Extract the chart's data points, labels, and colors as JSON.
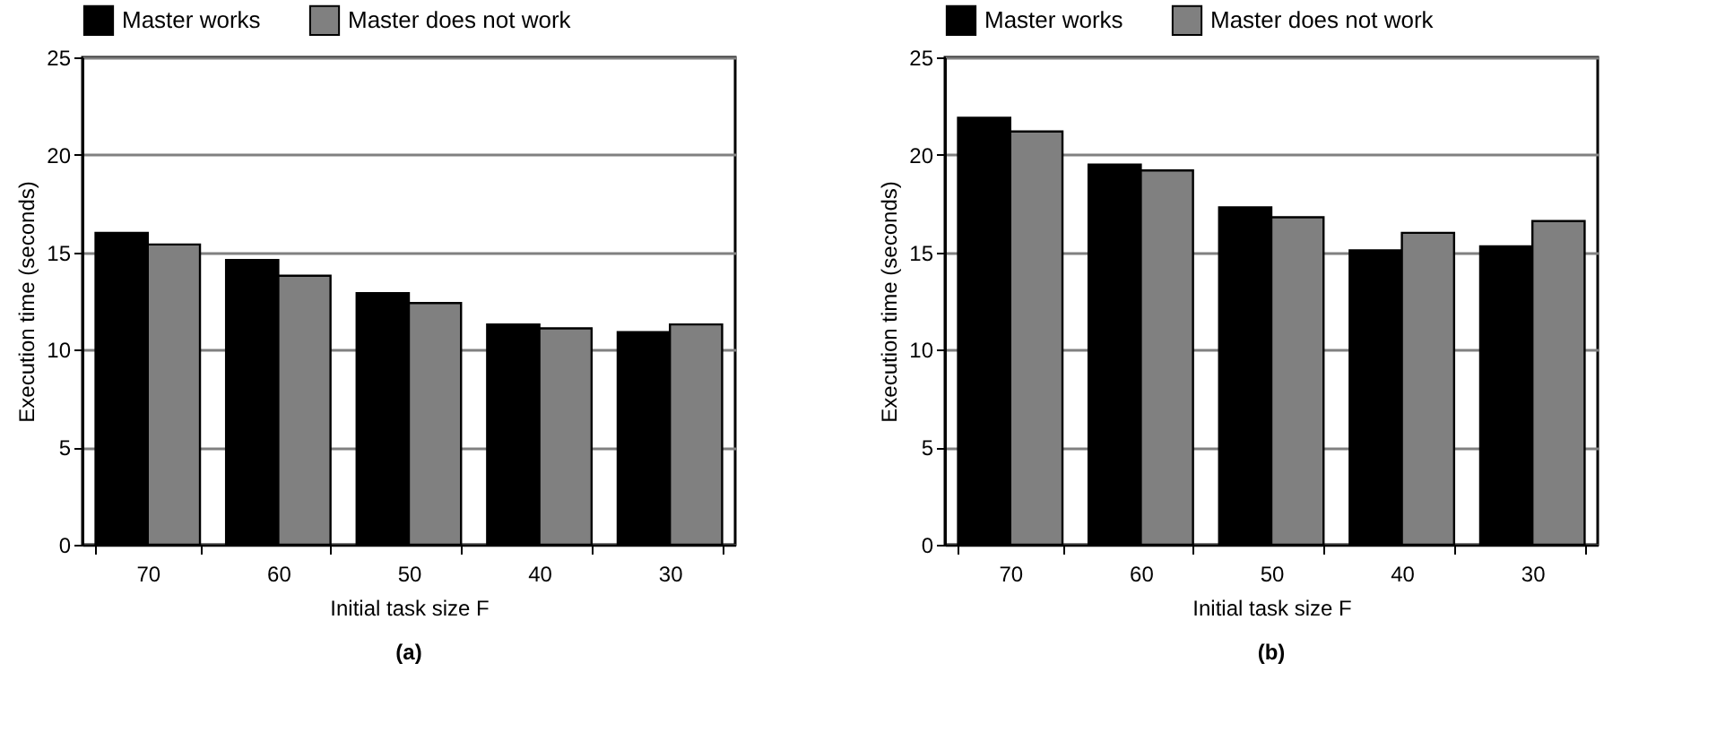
{
  "chart_data": [
    {
      "type": "bar",
      "title": "(a)",
      "xlabel": "Initial task size F",
      "ylabel": "Execution time (seconds)",
      "categories": [
        "70",
        "60",
        "50",
        "40",
        "30"
      ],
      "series": [
        {
          "name": "Master works",
          "color": "#000000",
          "values": [
            16.0,
            14.6,
            12.9,
            11.3,
            10.9
          ]
        },
        {
          "name": "Master does not work",
          "color": "#808080",
          "values": [
            15.4,
            13.8,
            12.4,
            11.1,
            11.3
          ]
        }
      ],
      "ylim": [
        0,
        25
      ],
      "yticks": [
        0,
        5,
        10,
        15,
        20,
        25
      ],
      "grid": "y",
      "legend": "top"
    },
    {
      "type": "bar",
      "title": "(b)",
      "xlabel": "Initial task size F",
      "ylabel": "Execution time (seconds)",
      "categories": [
        "70",
        "60",
        "50",
        "40",
        "30"
      ],
      "series": [
        {
          "name": "Master works",
          "color": "#000000",
          "values": [
            21.9,
            19.5,
            17.3,
            15.1,
            15.3
          ]
        },
        {
          "name": "Master does not work",
          "color": "#808080",
          "values": [
            21.2,
            19.2,
            16.8,
            16.0,
            16.6
          ]
        }
      ],
      "ylim": [
        0,
        25
      ],
      "yticks": [
        0,
        5,
        10,
        15,
        20,
        25
      ],
      "grid": "y",
      "legend": "top"
    }
  ]
}
